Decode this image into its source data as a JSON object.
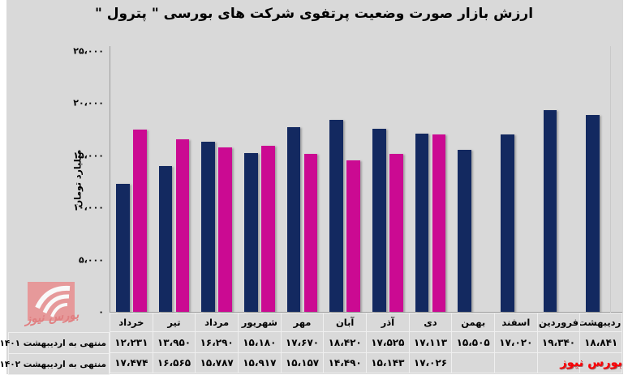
{
  "title": "ارزش بازار صورت وضعیت پرتفوی شرکت های بورسی \" پترول \"",
  "colors": {
    "background": "#d9d9d9",
    "series_1401": "#132960",
    "series_1402": "#cb0a92",
    "axis_line": "#9c9c9c",
    "table_border": "#efefef",
    "brand_red": "#fb0006",
    "watermark_pink": "#e98f90"
  },
  "y_axis": {
    "title": "میلیارد تومان",
    "ticks": [
      {
        "value": 25000,
        "label": "۲۵،۰۰۰"
      },
      {
        "value": 20000,
        "label": "۲۰،۰۰۰"
      },
      {
        "value": 15000,
        "label": "۱۵،۰۰۰"
      },
      {
        "value": 10000,
        "label": "۱۰،۰۰۰"
      },
      {
        "value": 5000,
        "label": "۵،۰۰۰"
      },
      {
        "value": 0,
        "label": "۰"
      }
    ]
  },
  "chart_data": {
    "type": "bar",
    "title": "ارزش بازار صورت وضعیت پرتفوی شرکت های بورسی \" پترول \"",
    "xlabel": "",
    "ylabel": "میلیارد تومان",
    "ylim": [
      0,
      25000
    ],
    "grid": false,
    "legend_position": "bottom-left-table-row-headers",
    "categories": [
      "خرداد",
      "تیر",
      "مرداد",
      "شهریور",
      "مهر",
      "آبان",
      "آذر",
      "دی",
      "بهمن",
      "اسفند",
      "فروردین",
      "اردیبهشت"
    ],
    "series": [
      {
        "name": "منتهی به اردیبهشت ۱۴۰۱",
        "color": "#132960",
        "values": [
          12231,
          13950,
          16290,
          15180,
          17670,
          18420,
          17525,
          17113,
          15505,
          17020,
          19340,
          18841
        ],
        "labels": [
          "۱۲،۲۳۱",
          "۱۳،۹۵۰",
          "۱۶،۲۹۰",
          "۱۵،۱۸۰",
          "۱۷،۶۷۰",
          "۱۸،۴۲۰",
          "۱۷،۵۲۵",
          "۱۷،۱۱۳",
          "۱۵،۵۰۵",
          "۱۷،۰۲۰",
          "۱۹،۳۴۰",
          "۱۸،۸۴۱"
        ]
      },
      {
        "name": "منتهی به اردیبهشت ۱۴۰۲",
        "color": "#cb0a92",
        "values": [
          17474,
          16565,
          15787,
          15917,
          15157,
          14490,
          15143,
          17026,
          null,
          null,
          null,
          null
        ],
        "labels": [
          "۱۷،۴۷۴",
          "۱۶،۵۶۵",
          "۱۵،۷۸۷",
          "۱۵،۹۱۷",
          "۱۵،۱۵۷",
          "۱۴،۴۹۰",
          "۱۵،۱۴۳",
          "۱۷،۰۲۶",
          "",
          "",
          "",
          ""
        ]
      }
    ]
  },
  "watermark": {
    "text": "بورس نیوز"
  },
  "footer": {
    "brand": "بورس نیوز"
  }
}
